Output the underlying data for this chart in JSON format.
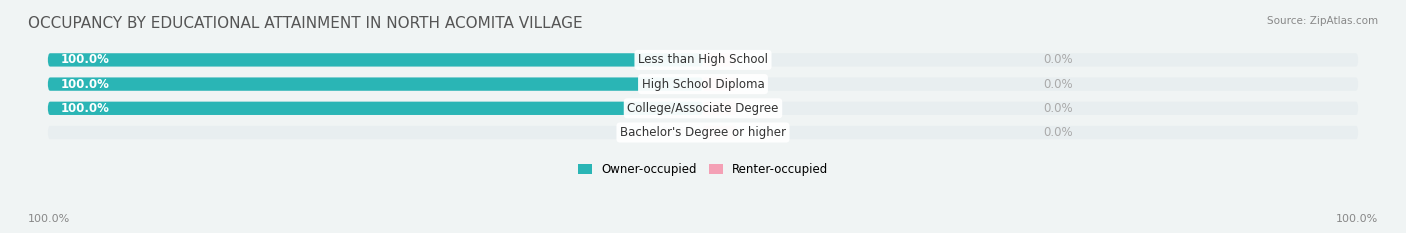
{
  "title": "OCCUPANCY BY EDUCATIONAL ATTAINMENT IN NORTH ACOMITA VILLAGE",
  "source": "Source: ZipAtlas.com",
  "categories": [
    "Less than High School",
    "High School Diploma",
    "College/Associate Degree",
    "Bachelor's Degree or higher"
  ],
  "owner_values": [
    100.0,
    100.0,
    100.0,
    0.0
  ],
  "renter_values": [
    0.0,
    0.0,
    0.0,
    0.0
  ],
  "owner_color": "#2ab5b5",
  "renter_color": "#f4a0b5",
  "background_color": "#f0f4f4",
  "bar_background": "#e8eef0",
  "title_fontsize": 11,
  "label_fontsize": 8.5,
  "axis_label_fontsize": 8,
  "bar_height": 0.55,
  "xlim": [
    -100,
    100
  ],
  "left_label": "100.0%",
  "right_label": "100.0%",
  "legend_labels": [
    "Owner-occupied",
    "Renter-occupied"
  ]
}
